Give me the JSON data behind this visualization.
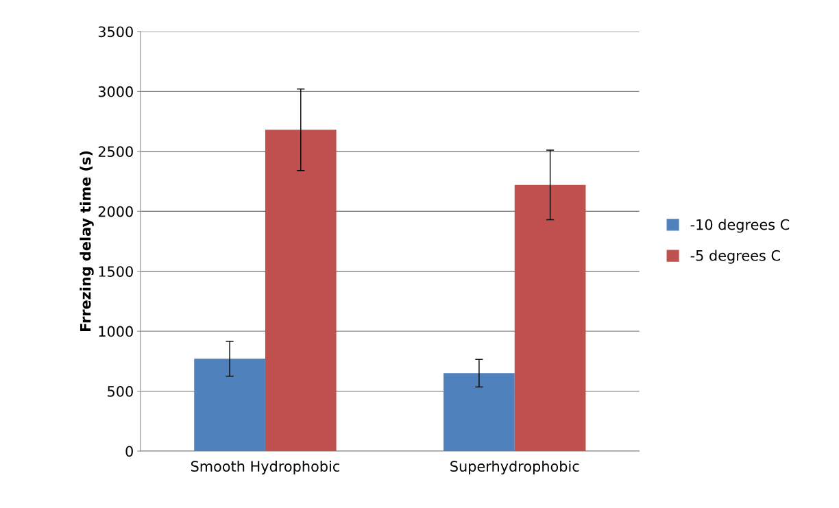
{
  "chart_data": {
    "type": "bar",
    "ylabel": "Frrezing delay time (s)",
    "categories": [
      "Smooth Hydrophobic",
      "Superhydrophobic"
    ],
    "series": [
      {
        "name": "-10 degrees C",
        "color": "#4f81bd",
        "values": [
          770,
          650
        ],
        "errors": [
          145,
          115
        ]
      },
      {
        "name": "-5 degrees C",
        "color": "#c0504d",
        "values": [
          2680,
          2220
        ],
        "errors": [
          340,
          290
        ]
      }
    ],
    "ylim": [
      0,
      3500
    ],
    "yticks": [
      0,
      500,
      1000,
      1500,
      2000,
      2500,
      3000,
      3500
    ],
    "grid": "y",
    "legend": "right"
  }
}
